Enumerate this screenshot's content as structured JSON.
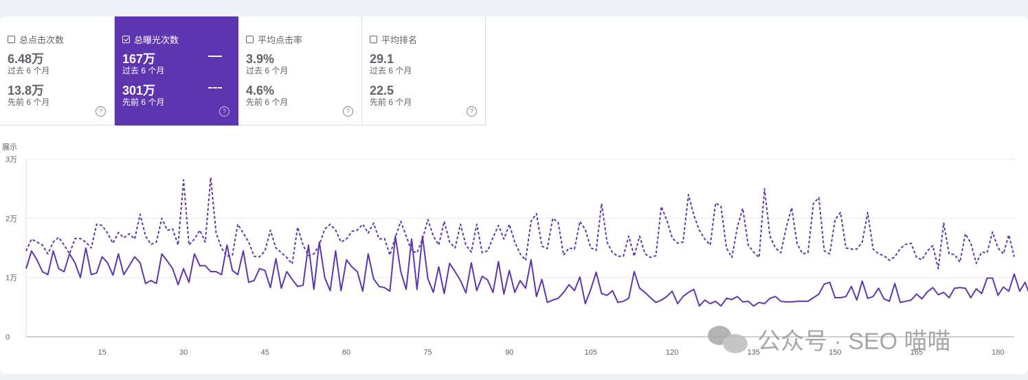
{
  "cards": [
    {
      "label": "总点击次数",
      "checked": false,
      "current_value": "6.48万",
      "current_period": "过去 6 个月",
      "previous_value": "13.8万",
      "previous_period": "先前 6 个月"
    },
    {
      "label": "总曝光次数",
      "checked": true,
      "current_value": "167万",
      "current_period": "过去 6 个月",
      "previous_value": "301万",
      "previous_period": "先前 6 个月"
    },
    {
      "label": "平均点击率",
      "checked": false,
      "current_value": "3.9%",
      "current_period": "过去 6 个月",
      "previous_value": "4.6%",
      "previous_period": "先前 6 个月"
    },
    {
      "label": "平均排名",
      "checked": false,
      "current_value": "29.1",
      "current_period": "过去 6 个月",
      "previous_value": "22.5",
      "previous_period": "先前 6 个月"
    }
  ],
  "help_glyph": "?",
  "watermark": {
    "text": "公众号 · SEO 喵喵",
    "icon": "wechat-icon"
  },
  "colors": {
    "accent": "#5e35b1",
    "line": "#5e35b1",
    "grid": "#e8eaed"
  },
  "chart_data": {
    "type": "line",
    "ylabel": "展示",
    "ylim": [
      0,
      30000
    ],
    "yticks": [
      {
        "v": 0,
        "label": "0"
      },
      {
        "v": 10000,
        "label": "1万"
      },
      {
        "v": 20000,
        "label": "2万"
      },
      {
        "v": 30000,
        "label": "3万"
      }
    ],
    "xlim": [
      1,
      183
    ],
    "xticks": [
      15,
      30,
      45,
      60,
      75,
      90,
      105,
      120,
      135,
      150,
      165,
      180
    ],
    "series": [
      {
        "name": "过去 6 个月",
        "style": "solid",
        "values": [
          11500,
          14500,
          13000,
          11000,
          10500,
          14500,
          11500,
          11000,
          14000,
          12500,
          10000,
          15000,
          10500,
          10800,
          13500,
          12500,
          10400,
          14000,
          10500,
          12000,
          13500,
          12500,
          9000,
          9500,
          9000,
          14000,
          12800,
          11500,
          8800,
          11500,
          9200,
          14000,
          12000,
          12000,
          11000,
          11000,
          10500,
          15500,
          11200,
          10500,
          14500,
          9200,
          9500,
          11500,
          11200,
          8300,
          13200,
          8200,
          11000,
          9700,
          8500,
          8700,
          15500,
          8000,
          16000,
          10000,
          7800,
          14500,
          7800,
          13000,
          11800,
          11000,
          7700,
          14000,
          9800,
          8500,
          8300,
          7700,
          17000,
          11000,
          8000,
          16500,
          8000,
          17000,
          9800,
          7500,
          11800,
          7300,
          12400,
          11000,
          9500,
          7400,
          12500,
          7800,
          10200,
          9600,
          7500,
          12700,
          7200,
          11200,
          7500,
          9500,
          8200,
          13000,
          6800,
          9700,
          5800,
          6200,
          6500,
          7500,
          8800,
          7800,
          10100,
          5600,
          8000,
          10900,
          7300,
          7000,
          7800,
          5800,
          6000,
          6500,
          11000,
          8200,
          7500,
          6600,
          5800,
          6200,
          6800,
          7700,
          5600,
          6800,
          7500,
          8000,
          5200,
          6200,
          5600,
          6000,
          5200,
          6500,
          6300,
          6800,
          5900,
          6000,
          5200,
          5800,
          5600,
          6500,
          6800,
          6000,
          5900,
          5900,
          6000,
          6000,
          6000,
          6600,
          7200,
          8900,
          9200,
          6600,
          6600,
          6800,
          8500,
          6200,
          9400,
          6500,
          6800,
          8200,
          6400,
          6000,
          9000,
          5800,
          6000,
          6200,
          7200,
          6400,
          7600,
          8300,
          7100,
          7500,
          6600,
          8200,
          8300,
          8200,
          6600,
          8100,
          7300,
          9900,
          9900,
          7000,
          8400,
          7700,
          10600,
          7700,
          9200,
          6700,
          8500
        ]
      },
      {
        "name": "先前 6 个月",
        "style": "dashed",
        "values": [
          14500,
          16500,
          16000,
          15500,
          14000,
          16000,
          16800,
          15500,
          14000,
          16600,
          16600,
          16000,
          15000,
          19000,
          18800,
          17500,
          15800,
          17600,
          16700,
          17400,
          16500,
          20700,
          17000,
          15600,
          16000,
          20000,
          18000,
          18200,
          15500,
          26500,
          15500,
          16500,
          18000,
          16000,
          26900,
          17500,
          15000,
          13600,
          13800,
          19000,
          17500,
          16000,
          13600,
          13500,
          14500,
          18000,
          15000,
          14200,
          13400,
          12300,
          18500,
          15500,
          13700,
          14000,
          15500,
          18200,
          19000,
          18000,
          16000,
          16500,
          17800,
          18000,
          19000,
          17500,
          19200,
          16500,
          16600,
          13800,
          16800,
          19500,
          17000,
          14500,
          14200,
          16500,
          19800,
          17000,
          15500,
          19500,
          16000,
          15000,
          19000,
          15500,
          14300,
          19000,
          14200,
          14500,
          16800,
          18800,
          16500,
          19000,
          16000,
          14000,
          12900,
          19500,
          20800,
          15300,
          14900,
          20000,
          19300,
          13800,
          15000,
          14800,
          19500,
          18100,
          15000,
          14600,
          22500,
          16000,
          14200,
          13600,
          13600,
          17000,
          13600,
          17000,
          14000,
          13400,
          13700,
          22000,
          19700,
          16700,
          15800,
          16000,
          24000,
          20500,
          18000,
          16500,
          15500,
          22600,
          22000,
          15000,
          13400,
          18500,
          21700,
          15500,
          14300,
          13400,
          25000,
          17000,
          15000,
          14200,
          18500,
          21800,
          15700,
          14000,
          14200,
          22500,
          23500,
          14500,
          14000,
          19800,
          21000,
          15000,
          14800,
          14800,
          16000,
          21000,
          14800,
          14000,
          13700,
          12900,
          13500,
          14900,
          15600,
          15800,
          13400,
          13000,
          14500,
          15400,
          11500,
          19200,
          14000,
          13900,
          12600,
          17400,
          15800,
          12400,
          14300,
          14200,
          17700,
          15000,
          14000,
          17200,
          13500
        ]
      }
    ]
  }
}
